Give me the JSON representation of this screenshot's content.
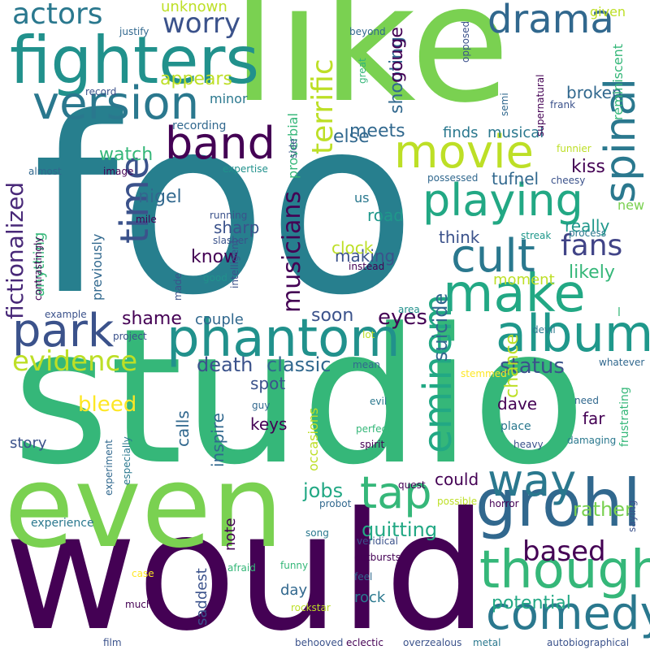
{
  "palette": {
    "dark_purple": "#440154",
    "indigo": "#46327e",
    "blue": "#365c8d",
    "teal_blue": "#277f8e",
    "teal": "#1fa187",
    "green": "#4ac16d",
    "lime": "#a0da39",
    "yellow": "#fde725"
  },
  "words": [
    {
      "text": "foo",
      "color": "#277f8e"
    },
    {
      "text": "studio",
      "color": "#35b779"
    },
    {
      "text": "would",
      "color": "#440154"
    },
    {
      "text": "like",
      "color": "#7ad151"
    },
    {
      "text": "even",
      "color": "#7ad151"
    },
    {
      "text": "fighters",
      "color": "#21918c"
    },
    {
      "text": "grohl",
      "color": "#31688e"
    },
    {
      "text": "album",
      "color": "#1f988b"
    },
    {
      "text": "phantom",
      "color": "#21918c"
    },
    {
      "text": "make",
      "color": "#22a884"
    },
    {
      "text": "version",
      "color": "#2a788e"
    },
    {
      "text": "park",
      "color": "#3b528b"
    },
    {
      "text": "though",
      "color": "#35b779"
    },
    {
      "text": "comedy",
      "color": "#2a788e"
    },
    {
      "text": "movie",
      "color": "#bddf26"
    },
    {
      "text": "playing",
      "color": "#22a884"
    },
    {
      "text": "cult",
      "color": "#2a788e"
    },
    {
      "text": "tap",
      "color": "#35b779"
    },
    {
      "text": "way",
      "color": "#2a788e"
    },
    {
      "text": "band",
      "color": "#440154"
    },
    {
      "text": "drama",
      "color": "#31688e"
    },
    {
      "text": "time",
      "color": "#3b528b"
    },
    {
      "text": "spinal",
      "color": "#2a788e"
    },
    {
      "text": "eminem",
      "color": "#22a884"
    },
    {
      "text": "fans",
      "color": "#414487"
    },
    {
      "text": "worry",
      "color": "#3b528b"
    },
    {
      "text": "actors",
      "color": "#2a788e"
    },
    {
      "text": "evidence",
      "color": "#bddf26"
    },
    {
      "text": "terrific",
      "color": "#bddf26"
    },
    {
      "text": "fictionalized",
      "color": "#482878"
    },
    {
      "text": "musicians",
      "color": "#440154"
    },
    {
      "text": "based",
      "color": "#440154"
    },
    {
      "text": "bleed",
      "color": "#fde725"
    },
    {
      "text": "death",
      "color": "#3b528b"
    },
    {
      "text": "classic",
      "color": "#31688e"
    },
    {
      "text": "potential",
      "color": "#22a884"
    },
    {
      "text": "eyes",
      "color": "#440154"
    },
    {
      "text": "suicide",
      "color": "#31688e"
    },
    {
      "text": "status",
      "color": "#3b528b"
    },
    {
      "text": "chance",
      "color": "#bddf26"
    },
    {
      "text": "rather",
      "color": "#7ad151"
    },
    {
      "text": "quitting",
      "color": "#22a884"
    },
    {
      "text": "jobs",
      "color": "#22a884"
    },
    {
      "text": "could",
      "color": "#440154"
    },
    {
      "text": "shame",
      "color": "#440154"
    },
    {
      "text": "appears",
      "color": "#bddf26"
    },
    {
      "text": "shooting",
      "color": "#31688e"
    },
    {
      "text": "gouge",
      "color": "#440154"
    },
    {
      "text": "meets",
      "color": "#31688e"
    },
    {
      "text": "else",
      "color": "#31688e"
    },
    {
      "text": "watch",
      "color": "#35b779"
    },
    {
      "text": "nigel",
      "color": "#31688e"
    },
    {
      "text": "kiss",
      "color": "#440154"
    },
    {
      "text": "tufnel",
      "color": "#31688e"
    },
    {
      "text": "finds",
      "color": "#2a788e"
    },
    {
      "text": "musical",
      "color": "#2a788e"
    },
    {
      "text": "broken",
      "color": "#31688e"
    },
    {
      "text": "know",
      "color": "#440154"
    },
    {
      "text": "sharp",
      "color": "#3b528b"
    },
    {
      "text": "making",
      "color": "#3b528b"
    },
    {
      "text": "think",
      "color": "#3b528b"
    },
    {
      "text": "road",
      "color": "#1f988b"
    },
    {
      "text": "clock",
      "color": "#bddf26"
    },
    {
      "text": "really",
      "color": "#1f988b"
    },
    {
      "text": "likely",
      "color": "#35b779"
    },
    {
      "text": "moment",
      "color": "#bddf26"
    },
    {
      "text": "soon",
      "color": "#3b528b"
    },
    {
      "text": "couple",
      "color": "#31688e"
    },
    {
      "text": "spot",
      "color": "#3b528b"
    },
    {
      "text": "inspire",
      "color": "#31688e"
    },
    {
      "text": "calls",
      "color": "#31688e"
    },
    {
      "text": "keys",
      "color": "#440154"
    },
    {
      "text": "dave",
      "color": "#440154"
    },
    {
      "text": "far",
      "color": "#440154"
    },
    {
      "text": "story",
      "color": "#3b528b"
    },
    {
      "text": "note",
      "color": "#440154"
    },
    {
      "text": "day",
      "color": "#31688e"
    },
    {
      "text": "rock",
      "color": "#2a788e"
    },
    {
      "text": "saddest",
      "color": "#3b528b"
    },
    {
      "text": "anything",
      "color": "#35b779"
    },
    {
      "text": "previously",
      "color": "#31688e"
    },
    {
      "text": "unknown",
      "color": "#bddf26"
    },
    {
      "text": "minor",
      "color": "#2a788e"
    },
    {
      "text": "proverbial",
      "color": "#35b779"
    },
    {
      "text": "reminiscent",
      "color": "#35b779"
    },
    {
      "text": "given",
      "color": "#bddf26"
    },
    {
      "text": "new",
      "color": "#7ad151"
    },
    {
      "text": "occasions",
      "color": "#bddf26"
    },
    {
      "text": "us",
      "color": "#2a788e"
    },
    {
      "text": "experience",
      "color": "#2a788e"
    },
    {
      "text": "recording",
      "color": "#31688e"
    },
    {
      "text": "expertise",
      "color": "#21918c"
    },
    {
      "text": "running",
      "color": "#3b528b"
    },
    {
      "text": "slasher",
      "color": "#3b528b"
    },
    {
      "text": "intelligent",
      "color": "#3b528b"
    },
    {
      "text": "contrastingly",
      "color": "#440154"
    },
    {
      "text": "good",
      "color": "#21918c"
    },
    {
      "text": "example",
      "color": "#3b528b"
    },
    {
      "text": "project",
      "color": "#3b528b"
    },
    {
      "text": "mean",
      "color": "#31688e"
    },
    {
      "text": "instead",
      "color": "#440154"
    },
    {
      "text": "streak",
      "color": "#1f988b"
    },
    {
      "text": "process",
      "color": "#2a788e"
    },
    {
      "text": "cheesy",
      "color": "#3b528b"
    },
    {
      "text": "frank",
      "color": "#3b528b"
    },
    {
      "text": "possessed",
      "color": "#31688e"
    },
    {
      "text": "semi",
      "color": "#31688e"
    },
    {
      "text": "supernatural",
      "color": "#440154"
    },
    {
      "text": "funnier",
      "color": "#bddf26"
    },
    {
      "text": "beyond",
      "color": "#31688e"
    },
    {
      "text": "great",
      "color": "#35b779"
    },
    {
      "text": "opposed",
      "color": "#3b528b"
    },
    {
      "text": "justify",
      "color": "#31688e"
    },
    {
      "text": "record",
      "color": "#3b528b"
    },
    {
      "text": "almost",
      "color": "#31688e"
    },
    {
      "text": "image",
      "color": "#440154"
    },
    {
      "text": "side",
      "color": "#3b528b"
    },
    {
      "text": "mile",
      "color": "#440154"
    },
    {
      "text": "made",
      "color": "#3b528b"
    },
    {
      "text": "area",
      "color": "#21918c"
    },
    {
      "text": "lot",
      "color": "#bddf26"
    },
    {
      "text": "devil",
      "color": "#2a788e"
    },
    {
      "text": "whatever",
      "color": "#31688e"
    },
    {
      "text": "stemmed",
      "color": "#fde725"
    },
    {
      "text": "l",
      "color": "#35b779"
    },
    {
      "text": "evil",
      "color": "#2a788e"
    },
    {
      "text": "guy",
      "color": "#31688e"
    },
    {
      "text": "perfect",
      "color": "#35b779"
    },
    {
      "text": "spirit",
      "color": "#440154"
    },
    {
      "text": "need",
      "color": "#31688e"
    },
    {
      "text": "place",
      "color": "#2a788e"
    },
    {
      "text": "heavy",
      "color": "#3b528b"
    },
    {
      "text": "damaging",
      "color": "#2a788e"
    },
    {
      "text": "frustrating",
      "color": "#35b779"
    },
    {
      "text": "quest",
      "color": "#440154"
    },
    {
      "text": "possible",
      "color": "#bddf26"
    },
    {
      "text": "probot",
      "color": "#31688e"
    },
    {
      "text": "horror",
      "color": "#440154"
    },
    {
      "text": "saying",
      "color": "#3b528b"
    },
    {
      "text": "experiment",
      "color": "#31688e"
    },
    {
      "text": "especially",
      "color": "#2a788e"
    },
    {
      "text": "song",
      "color": "#2a788e"
    },
    {
      "text": "outbursts",
      "color": "#440154"
    },
    {
      "text": "veridical",
      "color": "#3b528b"
    },
    {
      "text": "funny",
      "color": "#35b779"
    },
    {
      "text": "feel",
      "color": "#31688e"
    },
    {
      "text": "case",
      "color": "#fde725"
    },
    {
      "text": "afraid",
      "color": "#35b779"
    },
    {
      "text": "rockstar",
      "color": "#bddf26"
    },
    {
      "text": "much",
      "color": "#440154"
    },
    {
      "text": "film",
      "color": "#3b528b"
    },
    {
      "text": "behooved",
      "color": "#3b528b"
    },
    {
      "text": "eclectic",
      "color": "#440154"
    },
    {
      "text": "overzealous",
      "color": "#3b528b"
    },
    {
      "text": "metal",
      "color": "#2a788e"
    },
    {
      "text": "autobiographical",
      "color": "#3b528b"
    }
  ]
}
